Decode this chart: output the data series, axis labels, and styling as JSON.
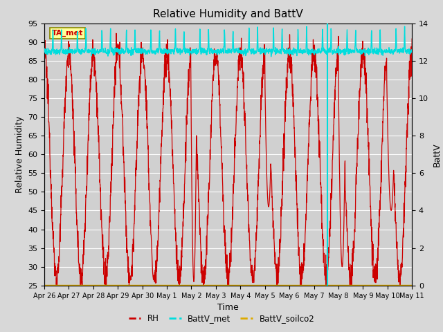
{
  "title": "Relative Humidity and BattV",
  "xlabel": "Time",
  "ylabel_left": "Relative Humidity",
  "ylabel_right": "BattV",
  "ylim_left": [
    25,
    95
  ],
  "ylim_right": [
    0,
    14
  ],
  "yticks_left": [
    25,
    30,
    35,
    40,
    45,
    50,
    55,
    60,
    65,
    70,
    75,
    80,
    85,
    90,
    95
  ],
  "yticks_right": [
    0,
    2,
    4,
    6,
    8,
    10,
    12,
    14
  ],
  "fig_bg_color": "#d8d8d8",
  "plot_bg_color": "#d0d0d0",
  "grid_color": "#ffffff",
  "rh_color": "#cc0000",
  "batt_met_color": "#00dddd",
  "batt_soilco2_color": "#ddaa00",
  "annotation_text": "TA_met",
  "annotation_bg": "#ffff99",
  "annotation_border": "#888800",
  "x_tick_labels": [
    "Apr 26",
    "Apr 27",
    "Apr 28",
    "Apr 29",
    "Apr 30",
    "May 1",
    "May 2",
    "May 3",
    "May 4",
    "May 5",
    "May 6",
    "May 7",
    "May 8",
    "May 9",
    "May 10",
    "May 11"
  ]
}
